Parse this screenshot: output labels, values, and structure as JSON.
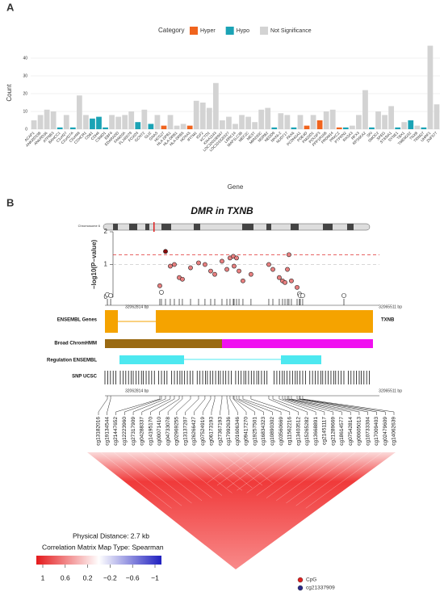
{
  "chart_data": [
    {
      "type": "bar",
      "panel": "A",
      "legend": {
        "title": "Category",
        "items": [
          {
            "name": "Hyper",
            "color": "#f0641e"
          },
          {
            "name": "Hypo",
            "color": "#1ba3b5"
          },
          {
            "name": "Not Significance",
            "color": "#d3d3d3"
          }
        ]
      },
      "xlabel": "Gene",
      "ylabel": "Count",
      "categories": [
        "ACAP1",
        "ANKRD33B",
        "ANKRD36",
        "ATP8B3",
        "BAHCC1",
        "C1orf27",
        "C2orf27A",
        "C6orf48",
        "CCHCR1",
        "CD81",
        "CDH4",
        "CSMD1",
        "EBF4",
        "EDARADD",
        "FAM20A",
        "FLJ45079",
        "FOXD3",
        "GCNT2",
        "GLI2",
        "GNAS",
        "HCG27",
        "HLA-DPB1",
        "HLA-DRB1",
        "HLA-DRB5",
        "HOXA5",
        "IFITM1",
        "IGF2",
        "KCTD1",
        "KIAA1143",
        "LOC100188947",
        "LOC101928327",
        "LRRC14",
        "MAP1LC3B",
        "MEF2C",
        "MEST",
        "MIR200C",
        "MSRB2",
        "NEDD9",
        "NKX6-2",
        "NUDT17",
        "PAX6",
        "PCDHGA1",
        "PDE4D",
        "PM20D1",
        "POU3F3",
        "PPP1R16B",
        "PRDM14",
        "PRKCZ",
        "PTPRN2",
        "RASA3",
        "RFX3",
        "RPS6KA2",
        "SKI",
        "SMOC2",
        "SPEG",
        "ST8SIA1",
        "SYNE1",
        "TBX1",
        "TMEM232",
        "TNXB",
        "TRIM27",
        "UHRF1",
        "ZNF577"
      ],
      "values": [
        5,
        8,
        11,
        10,
        1,
        8,
        1,
        19,
        8,
        6,
        7,
        1,
        8,
        7,
        8,
        10,
        4,
        11,
        3,
        8,
        2,
        8,
        2,
        3,
        2,
        16,
        15,
        12,
        26,
        5,
        7,
        3,
        8,
        7,
        4,
        11,
        12,
        1,
        9,
        8,
        1,
        8,
        2,
        8,
        5,
        10,
        11,
        1,
        1,
        2,
        8,
        22,
        1,
        10,
        8,
        13,
        1,
        4,
        5,
        2,
        1,
        47,
        14
      ],
      "groups": [
        "Not Significance",
        "Not Significance",
        "Not Significance",
        "Not Significance",
        "Hypo",
        "Not Significance",
        "Hypo",
        "Not Significance",
        "Not Significance",
        "Hypo",
        "Hypo",
        "Hypo",
        "Not Significance",
        "Not Significance",
        "Not Significance",
        "Not Significance",
        "Hypo",
        "Not Significance",
        "Hypo",
        "Not Significance",
        "Hyper",
        "Not Significance",
        "Not Significance",
        "Not Significance",
        "Hyper",
        "Not Significance",
        "Not Significance",
        "Not Significance",
        "Not Significance",
        "Not Significance",
        "Not Significance",
        "Not Significance",
        "Not Significance",
        "Not Significance",
        "Not Significance",
        "Not Significance",
        "Not Significance",
        "Hypo",
        "Not Significance",
        "Not Significance",
        "Hypo",
        "Not Significance",
        "Hyper",
        "Not Significance",
        "Hyper",
        "Not Significance",
        "Not Significance",
        "Hyper",
        "Hypo",
        "Not Significance",
        "Not Significance",
        "Not Significance",
        "Hypo",
        "Not Significance",
        "Not Significance",
        "Not Significance",
        "Hypo",
        "Not Significance",
        "Hypo",
        "Not Significance",
        "Hypo",
        "Not Significance",
        "Not Significance"
      ],
      "ylim": [
        0,
        50
      ],
      "yticks": [
        0,
        10,
        20,
        30,
        40
      ],
      "grid": true
    },
    {
      "type": "scatter",
      "panel": "B",
      "title": "DMR in TXNB",
      "chromosome": "Chromosome 6",
      "ylabel": "−log10(P−value)",
      "xlim": [
        32062814,
        32065511
      ],
      "xlim_labels": [
        "32062814 bp",
        "32065511 bp"
      ],
      "ylim": [
        0,
        2
      ],
      "yticks": [
        0,
        1,
        2
      ],
      "threshold_lines": [
        {
          "value": 1.3,
          "color": "#e03030"
        },
        {
          "value": 1,
          "color": "#cccccc"
        }
      ],
      "color": "#e87f7f",
      "x": [
        32062838,
        32062870,
        32063353,
        32063369,
        32063409,
        32063456,
        32063496,
        32063544,
        32063575,
        32063655,
        32063734,
        32063797,
        32063853,
        32063893,
        32063964,
        32064012,
        32064043,
        32064075,
        32064083,
        32064107,
        32064131,
        32064170,
        32064249,
        32064424,
        32064464,
        32064527,
        32064559,
        32064583,
        32064607,
        32064622,
        32064646,
        32064702,
        32064725,
        32064733,
        32064757,
        32065162
      ],
      "values": [
        0.08,
        0.05,
        0.35,
        0.15,
        1.4,
        0.95,
        1.0,
        0.6,
        0.55,
        0.9,
        1.05,
        1.0,
        0.8,
        0.7,
        1.1,
        0.85,
        1.2,
        1.25,
        0.95,
        1.2,
        0.8,
        0.5,
        0.7,
        1.0,
        0.85,
        0.6,
        0.5,
        0.45,
        0.85,
        1.3,
        0.5,
        0.3,
        0.1,
        0.05,
        0.05,
        0.05
      ],
      "tracks": [
        "ENSEMBL Genes",
        "Broad ChromHMM",
        "Regulation ENSEMBL",
        "SNP UCSC"
      ],
      "gene": "TXNB",
      "cpg_labels": [
        "cg13182016",
        "cg19134544",
        "cg21447652",
        "cg12223960",
        "cg27317909",
        "cg04288337",
        "cg14195170",
        "cg00071410",
        "cg04733078",
        "cg02969255",
        "cg13137207",
        "cg26266427",
        "cg07524919",
        "cg06173193",
        "cg27367193",
        "cg17992636",
        "cg01606346",
        "cg09417270",
        "cg19257501",
        "cg16834323",
        "cg10890302",
        "cg03560669",
        "cg11562216",
        "cg13403512",
        "cg15265282",
        "cg13668891",
        "cg21451117",
        "cg21289669",
        "cg18614577",
        "cg07542814",
        "cg00605013",
        "cg10733304",
        "cg17009403",
        "cg02479609",
        "cg14062639"
      ],
      "distance_label": "Physical Distance: 2.7 kb",
      "matrix_label": "Correlation Matrix Map Type: Spearman",
      "colorbar_ticks": [
        {
          "value": 1,
          "label": "1"
        },
        {
          "value": 0.6,
          "label": "0.6"
        },
        {
          "value": 0.2,
          "label": "0.2"
        },
        {
          "value": -0.2,
          "label": "−0.2"
        },
        {
          "value": -0.6,
          "label": "−0.6"
        },
        {
          "value": -1,
          "label": "−1"
        }
      ],
      "point_legend": [
        {
          "name": "CpG",
          "color": "#e02020"
        },
        {
          "name": "cg21337909",
          "color": "#2a2a8a"
        }
      ]
    }
  ]
}
